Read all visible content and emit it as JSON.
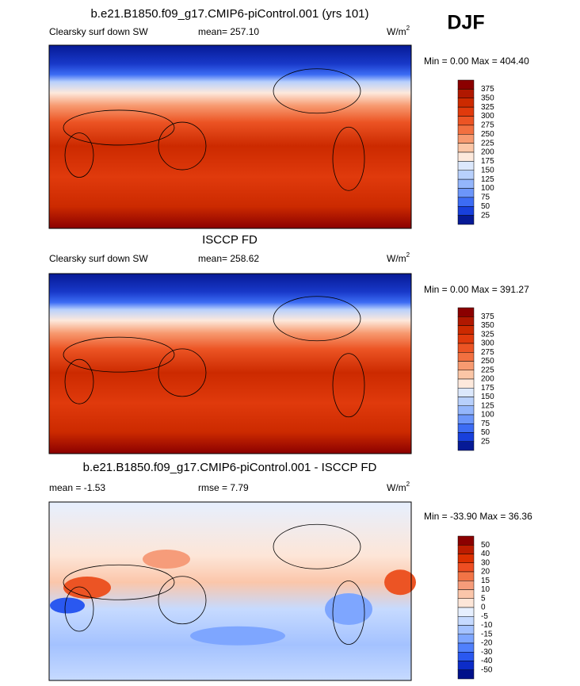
{
  "season": "DJF",
  "panels": [
    {
      "title": "b.e21.B1850.f09_g17.CMIP6-piControl.001 (yrs 101)",
      "left_label": "Clearsky surf down SW",
      "center_label": "mean= 257.10",
      "units": "W/m",
      "units_power": "2",
      "minmax": "Min =   0.00 Max = 404.40",
      "colorbar": {
        "labels": [
          375,
          350,
          325,
          300,
          275,
          250,
          225,
          200,
          175,
          150,
          125,
          100,
          75,
          50,
          25
        ],
        "colors": [
          "#8b0000",
          "#b01800",
          "#cc2a00",
          "#e03a0c",
          "#ec5424",
          "#f27040",
          "#f79a70",
          "#fbc6a6",
          "#fde9dc",
          "#dce8fc",
          "#b8d0fc",
          "#94b6fc",
          "#6c96fa",
          "#3c6cf4",
          "#1840dc",
          "#061a96"
        ]
      }
    },
    {
      "title": "ISCCP FD",
      "left_label": "Clearsky surf down SW",
      "center_label": "mean= 258.62",
      "units": "W/m",
      "units_power": "2",
      "minmax": "Min =   0.00 Max = 391.27",
      "colorbar": {
        "labels": [
          375,
          350,
          325,
          300,
          275,
          250,
          225,
          200,
          175,
          150,
          125,
          100,
          75,
          50,
          25
        ],
        "colors": [
          "#8b0000",
          "#b01800",
          "#cc2a00",
          "#e03a0c",
          "#ec5424",
          "#f27040",
          "#f79a70",
          "#fbc6a6",
          "#fde9dc",
          "#dce8fc",
          "#b8d0fc",
          "#94b6fc",
          "#6c96fa",
          "#3c6cf4",
          "#1840dc",
          "#061a96"
        ]
      }
    },
    {
      "title": "b.e21.B1850.f09_g17.CMIP6-piControl.001 - ISCCP FD",
      "left_label": "mean =  -1.53",
      "center_label": "rmse =   7.79",
      "units": "W/m",
      "units_power": "2",
      "minmax": "Min = -33.90 Max =  36.36",
      "colorbar": {
        "labels": [
          50,
          40,
          30,
          20,
          15,
          10,
          5,
          0,
          -5,
          -10,
          -15,
          -20,
          -30,
          -40,
          -50
        ],
        "colors": [
          "#8b0000",
          "#bc1c00",
          "#dc3000",
          "#ee4e22",
          "#f27446",
          "#f69c7a",
          "#fbc6aa",
          "#fde6d8",
          "#e6effe",
          "#c6daff",
          "#a4c2ff",
          "#7ea6ff",
          "#5080fc",
          "#2a58f0",
          "#0c2cc8",
          "#00108a"
        ]
      }
    }
  ]
}
